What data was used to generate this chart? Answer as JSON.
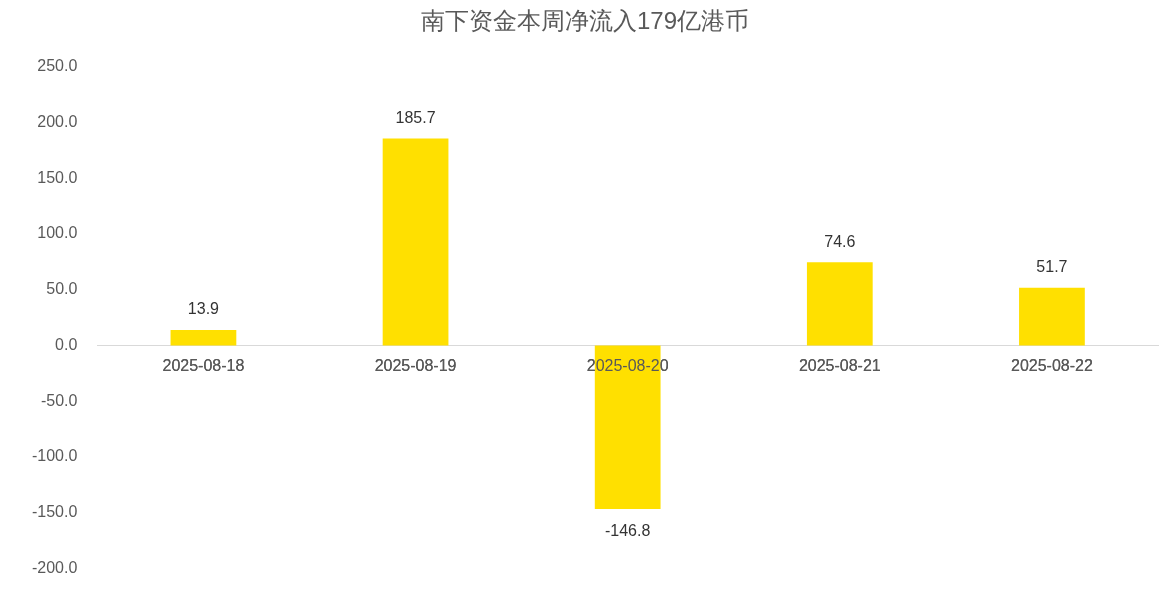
{
  "chart_data": {
    "type": "bar",
    "title": "南下资金本周净流入179亿港币",
    "categories": [
      "2025-08-18",
      "2025-08-19",
      "2025-08-20",
      "2025-08-21",
      "2025-08-22"
    ],
    "values": [
      13.9,
      185.7,
      -146.8,
      74.6,
      51.7
    ],
    "color": "#ffe000",
    "ylim": [
      -200,
      250
    ],
    "yticks": [
      {
        "value": -200,
        "label": "-200.0"
      },
      {
        "value": -150,
        "label": "-150.0"
      },
      {
        "value": -100,
        "label": "-100.0"
      },
      {
        "value": -50,
        "label": "-50.0"
      },
      {
        "value": 0,
        "label": "0.0"
      },
      {
        "value": 50,
        "label": "50.0"
      },
      {
        "value": 100,
        "label": "100.0"
      },
      {
        "value": 150,
        "label": "150.0"
      },
      {
        "value": 200,
        "label": "200.0"
      },
      {
        "value": 250,
        "label": "250.0"
      }
    ],
    "grid": false,
    "legend": false,
    "data_labels": true
  }
}
